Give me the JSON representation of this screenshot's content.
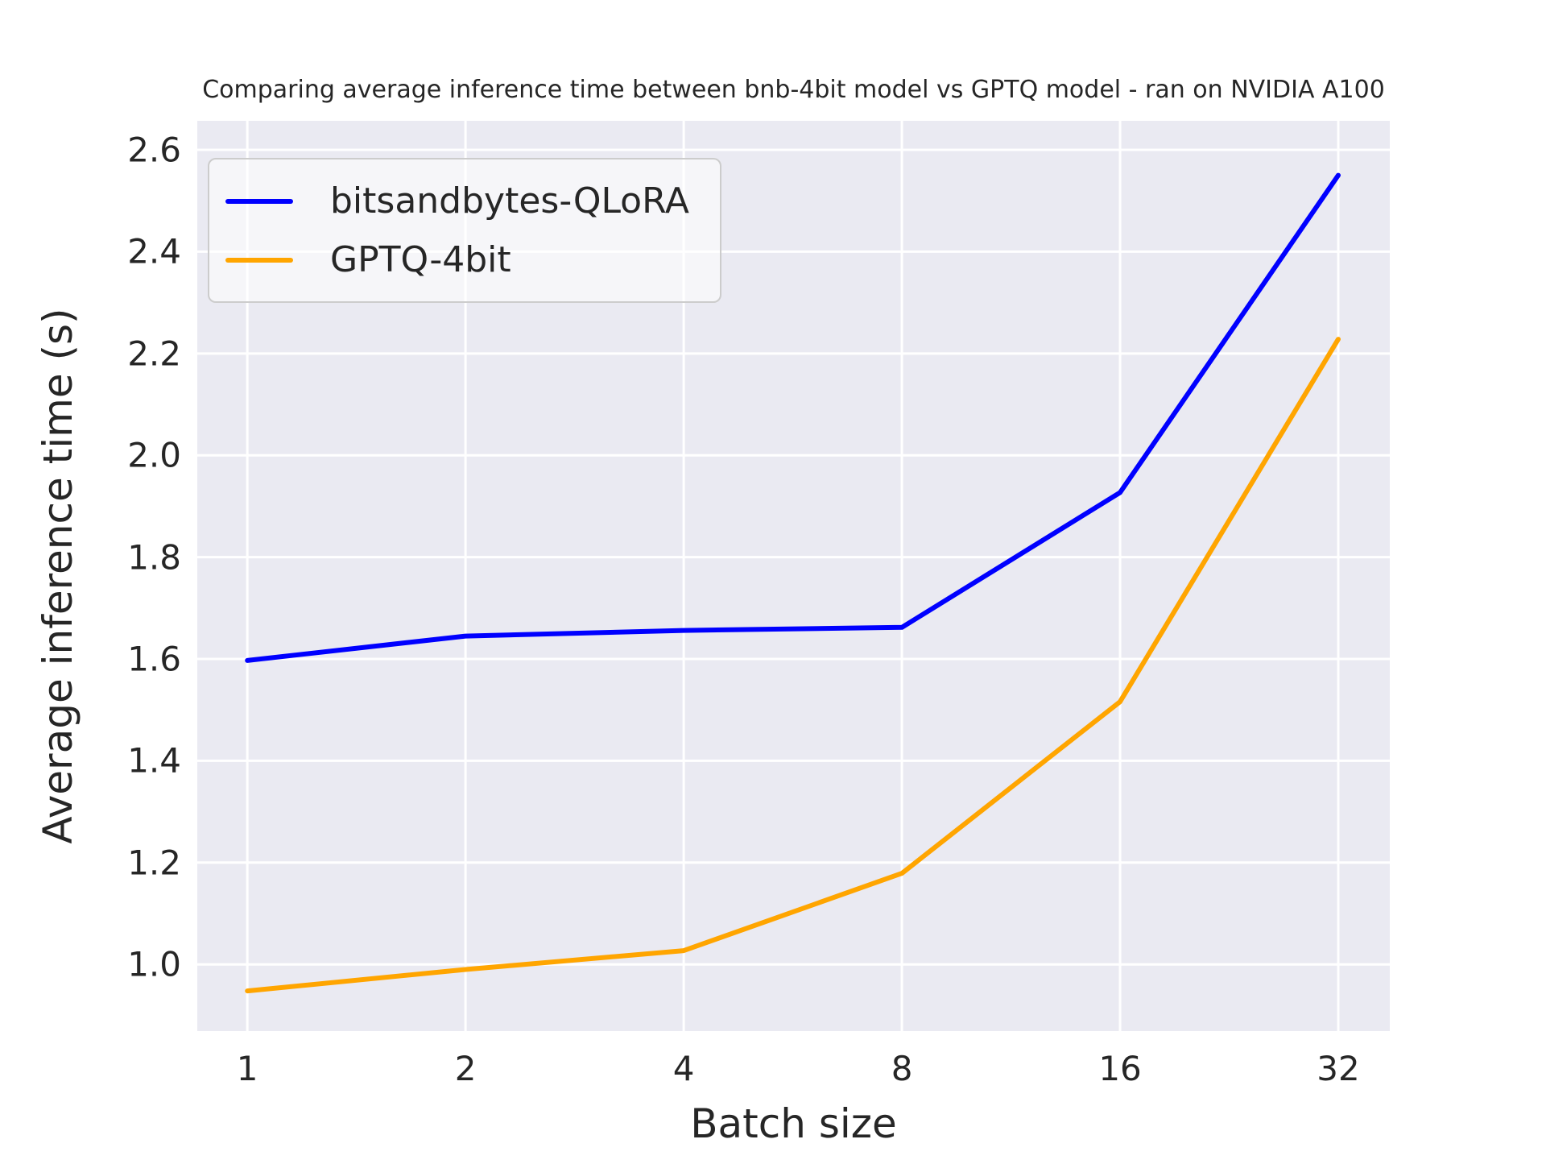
{
  "title": "Comparing average inference time between bnb-4bit model vs GPTQ model - ran on NVIDIA A100",
  "chart_data": {
    "type": "line",
    "title": "Comparing average inference time between bnb-4bit model vs GPTQ model - ran on NVIDIA A100",
    "xlabel": "Batch size",
    "ylabel": "Average inference time (s)",
    "xscale": "log2",
    "x": [
      1,
      2,
      4,
      8,
      16,
      32
    ],
    "xticklabels": [
      "1",
      "2",
      "4",
      "8",
      "16",
      "32"
    ],
    "yticks": [
      1.0,
      1.2,
      1.4,
      1.6,
      1.8,
      2.0,
      2.2,
      2.4,
      2.6
    ],
    "ytick_labels": [
      "1.0",
      "1.2",
      "1.4",
      "1.6",
      "1.8",
      "2.0",
      "2.2",
      "2.4",
      "2.6"
    ],
    "xlim": [
      0.853,
      37.69
    ],
    "ylim": [
      0.869,
      2.657
    ],
    "grid": true,
    "legend_position": "upper-left",
    "series": [
      {
        "name": "bitsandbytes-QLoRA",
        "color": "#0000ff",
        "values": [
          1.597,
          1.645,
          1.656,
          1.662,
          1.927,
          2.55
        ]
      },
      {
        "name": "GPTQ-4bit",
        "color": "#ffa500",
        "values": [
          0.948,
          0.99,
          1.027,
          1.179,
          1.516,
          2.228
        ]
      }
    ],
    "background": "#eaeaf2",
    "gridline_color": "#ffffff",
    "text_color": "#262626"
  }
}
